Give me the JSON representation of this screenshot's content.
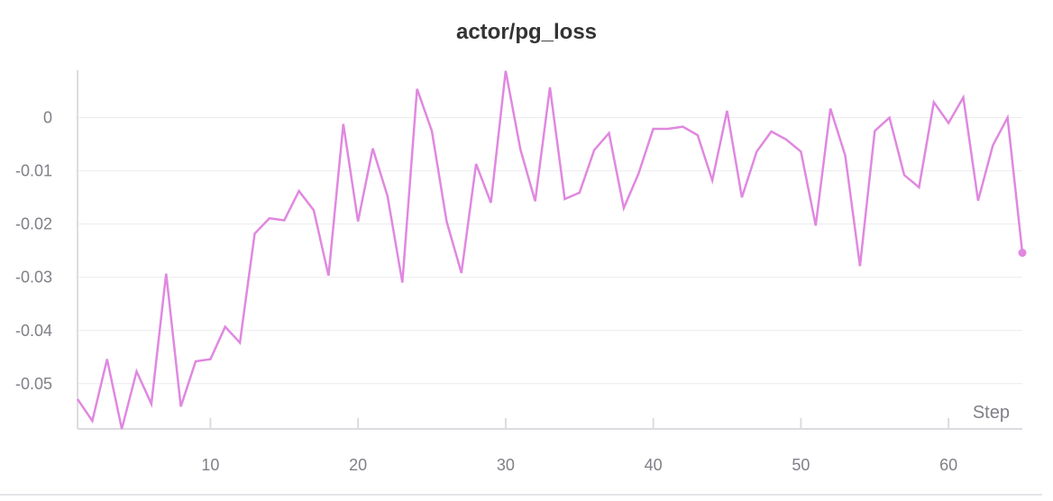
{
  "chart_data": {
    "type": "line",
    "title": "actor/pg_loss",
    "xlabel": "Step",
    "ylabel": "",
    "xlim": [
      1,
      65
    ],
    "ylim": [
      -0.0585,
      0.0089
    ],
    "x_ticks": [
      10,
      20,
      30,
      40,
      50,
      60
    ],
    "y_ticks": [
      0,
      -0.01,
      -0.02,
      -0.03,
      -0.04,
      -0.05
    ],
    "y_tick_labels": [
      "0",
      "-0.01",
      "-0.02",
      "-0.03",
      "-0.04",
      "-0.05"
    ],
    "grid": true,
    "line_color": "#e088e0",
    "series": [
      {
        "x": [
          1,
          2,
          3,
          4,
          5,
          6,
          7,
          8,
          9,
          10,
          11,
          12,
          13,
          14,
          15,
          16,
          17,
          18,
          19,
          20,
          21,
          22,
          23,
          24,
          25,
          26,
          27,
          28,
          29,
          30,
          31,
          32,
          33,
          34,
          35,
          36,
          37,
          38,
          39,
          40,
          41,
          42,
          43,
          44,
          45,
          46,
          47,
          48,
          49,
          50,
          51,
          52,
          53,
          54,
          55,
          56,
          57,
          58,
          59,
          60,
          61,
          62,
          63,
          64,
          65
        ],
        "values": [
          -0.0529,
          -0.057,
          -0.0454,
          -0.0585,
          -0.0477,
          -0.0538,
          -0.0293,
          -0.0543,
          -0.0458,
          -0.0454,
          -0.0393,
          -0.0423,
          -0.0218,
          -0.0189,
          -0.0193,
          -0.0138,
          -0.0174,
          -0.0297,
          -0.0012,
          -0.0195,
          -0.0058,
          -0.0148,
          -0.031,
          0.0054,
          -0.0025,
          -0.0195,
          -0.0292,
          -0.0087,
          -0.016,
          0.0088,
          -0.006,
          -0.0157,
          0.0057,
          -0.0153,
          -0.0141,
          -0.0061,
          -0.0029,
          -0.017,
          -0.0105,
          -0.0021,
          -0.0021,
          -0.0017,
          -0.0033,
          -0.0118,
          0.0013,
          -0.015,
          -0.0064,
          -0.0026,
          -0.0041,
          -0.0064,
          -0.0203,
          0.0017,
          -0.0071,
          -0.0279,
          -0.0025,
          0.0,
          -0.0108,
          -0.0131,
          0.0029,
          -0.001,
          0.0038,
          -0.0156,
          -0.0052,
          0.0,
          -0.0254
        ]
      }
    ]
  }
}
